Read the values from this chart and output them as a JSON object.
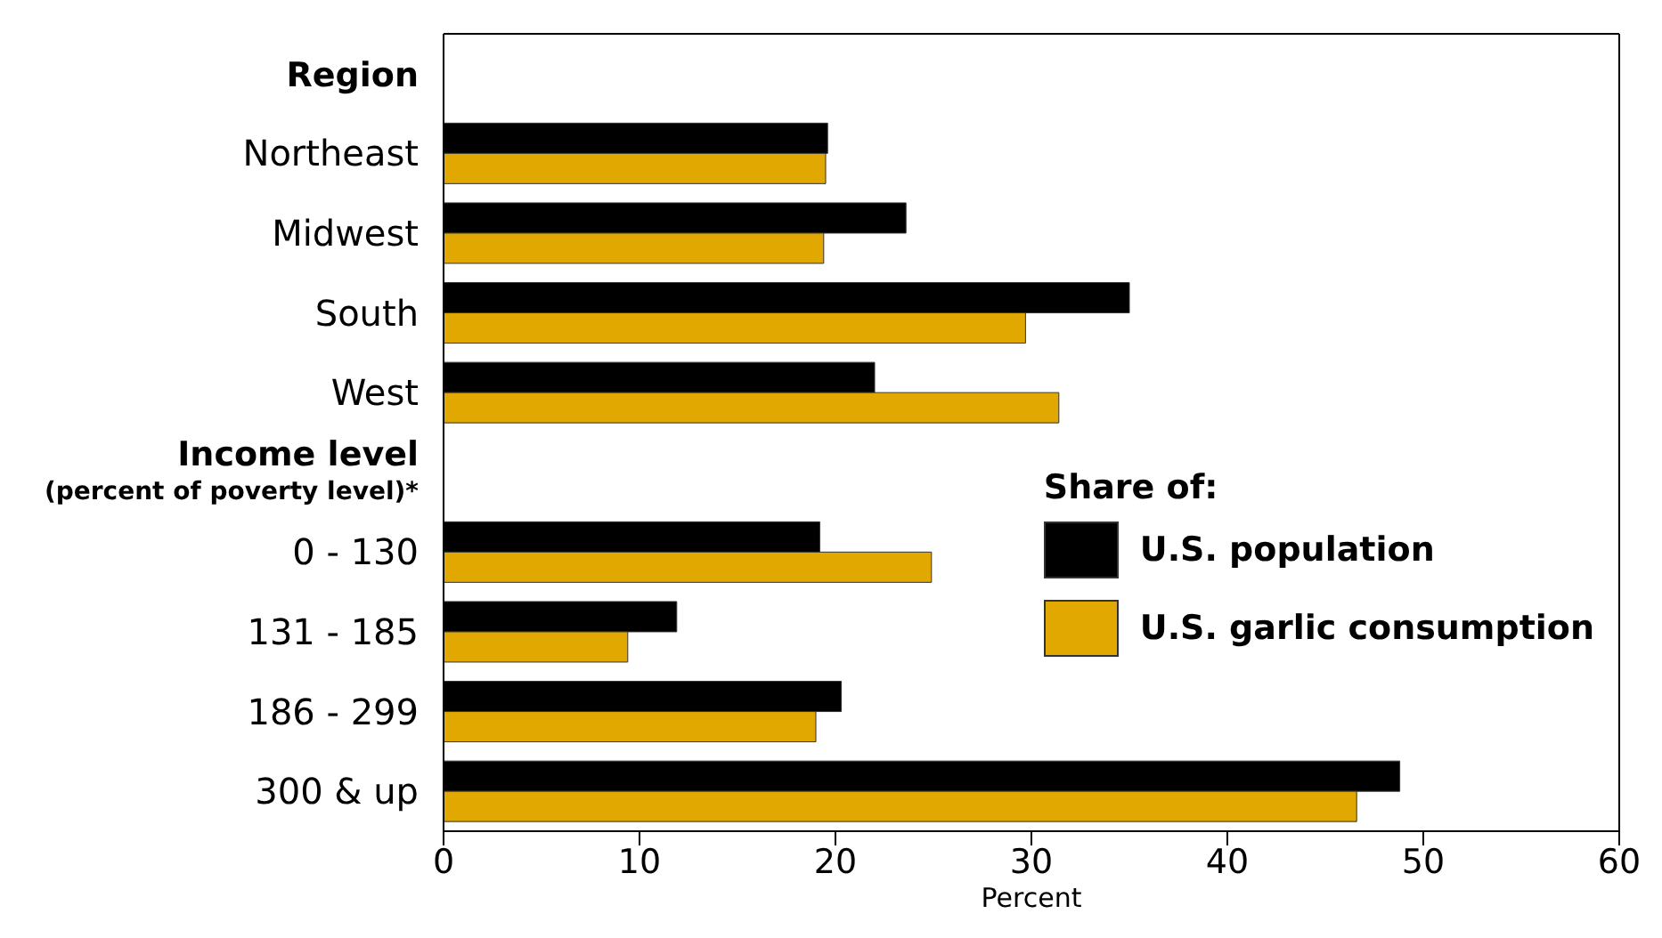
{
  "chart_data": {
    "type": "bar",
    "orientation": "horizontal",
    "categories": [
      "Region",
      "Northeast",
      "Midwest",
      "South",
      "West",
      "Income level (percent of poverty level)*",
      "0 - 130",
      "131 - 185",
      "186 - 299",
      "300 & up"
    ],
    "series": [
      {
        "name": "U.S. population",
        "color": "#000000",
        "values": [
          null,
          19.6,
          23.6,
          35.0,
          22.0,
          null,
          19.2,
          11.9,
          20.3,
          48.8
        ]
      },
      {
        "name": "U.S. garlic consumption",
        "color": "#e0a800",
        "values": [
          null,
          19.5,
          19.4,
          29.7,
          31.4,
          null,
          24.9,
          9.4,
          19.0,
          46.6
        ]
      }
    ],
    "xlabel": "Percent",
    "xlim": [
      0,
      60
    ],
    "xticks": [
      0,
      10,
      20,
      30,
      40,
      50,
      60
    ],
    "legend": "right",
    "legend_title": "Share of:",
    "grid": false
  }
}
